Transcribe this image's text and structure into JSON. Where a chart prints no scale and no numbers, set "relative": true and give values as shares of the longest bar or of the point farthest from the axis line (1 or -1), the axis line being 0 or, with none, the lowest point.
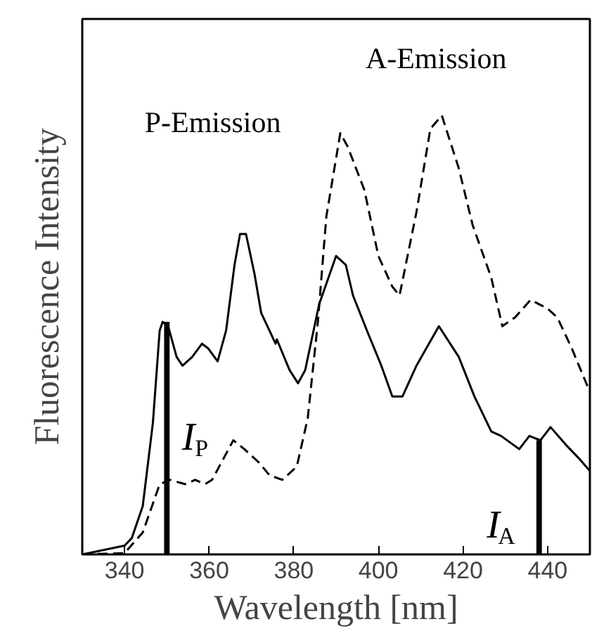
{
  "chart_data": {
    "type": "line",
    "relative": true,
    "xlabel": "Wavelength [nm]",
    "ylabel": "Fluorescence Intensity",
    "xlim": [
      330,
      450
    ],
    "xticks": [
      340,
      360,
      380,
      400,
      420,
      440
    ],
    "grid": false,
    "series": [
      {
        "color": "#000000",
        "line_style": "solid",
        "x": [
          330,
          340,
          341.7,
          344.3,
          346.7,
          348.3,
          349,
          350.3,
          352.3,
          353.7,
          356,
          358.3,
          359.7,
          362,
          364,
          366,
          367.3,
          368.7,
          370.7,
          372.3,
          375.7,
          376,
          379,
          381,
          382.7,
          386,
          390,
          392.3,
          394,
          397.3,
          400.7,
          403.3,
          405.7,
          409,
          414.3,
          419,
          422.7,
          426.7,
          429,
          433.3,
          435.7,
          438.3,
          440.7,
          444.3,
          447.3,
          450
        ],
        "values": [
          0,
          0.02,
          0.037,
          0.11,
          0.3,
          0.51,
          0.53,
          0.52,
          0.45,
          0.43,
          0.45,
          0.48,
          0.47,
          0.44,
          0.51,
          0.66,
          0.73,
          0.73,
          0.64,
          0.55,
          0.48,
          0.49,
          0.42,
          0.39,
          0.42,
          0.57,
          0.68,
          0.66,
          0.59,
          0.51,
          0.43,
          0.36,
          0.36,
          0.43,
          0.52,
          0.45,
          0.36,
          0.28,
          0.27,
          0.24,
          0.27,
          0.26,
          0.29,
          0.25,
          0.22,
          0.19
        ]
      },
      {
        "color": "#000000",
        "line_style": "dashed",
        "x": [
          330,
          340,
          344.3,
          348.3,
          350.7,
          354.3,
          356.7,
          359,
          360.7,
          365.7,
          368.3,
          371.7,
          374.3,
          377.3,
          380.7,
          383.3,
          385.7,
          387.7,
          391,
          392.7,
          396.7,
          400,
          403.3,
          405,
          409,
          412.3,
          415,
          419,
          422.3,
          426.7,
          429.3,
          432.3,
          436,
          440,
          442.3,
          445.7,
          450
        ],
        "values": [
          0,
          0.003,
          0.05,
          0.16,
          0.17,
          0.16,
          0.17,
          0.16,
          0.17,
          0.26,
          0.24,
          0.21,
          0.18,
          0.17,
          0.2,
          0.31,
          0.53,
          0.77,
          0.96,
          0.93,
          0.83,
          0.68,
          0.61,
          0.59,
          0.78,
          0.97,
          1.0,
          0.88,
          0.75,
          0.63,
          0.52,
          0.54,
          0.58,
          0.56,
          0.54,
          0.47,
          0.37
        ]
      },
      {
        "type": "bar",
        "color": "#000000",
        "x": [
          350,
          438
        ],
        "values": [
          0.53,
          0.26
        ]
      }
    ],
    "annotations": [
      "P-Emission",
      "A-Emission",
      "I$_{P}$",
      "I$_{A}$"
    ]
  }
}
